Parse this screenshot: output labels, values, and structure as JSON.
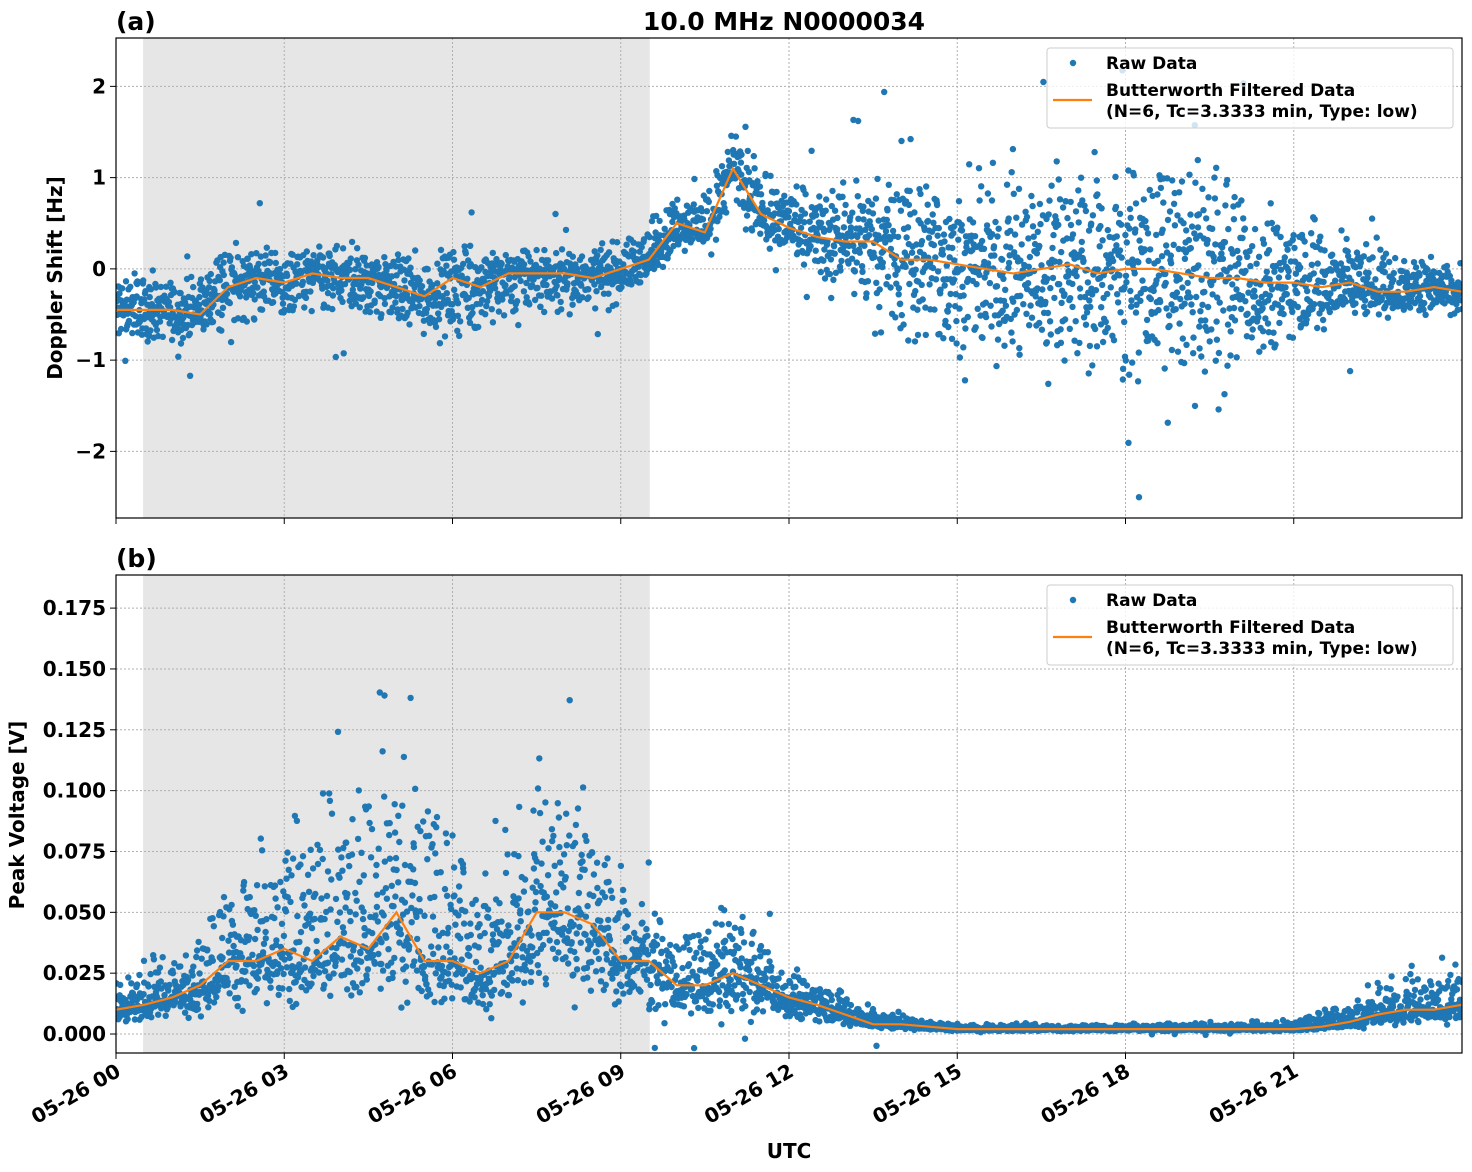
{
  "title": "10.0 MHz N0000034",
  "colors": {
    "raw": "#1f77b4",
    "filtered": "#ff7f0e",
    "shade": "#e6e6e6",
    "grid": "#b0b0b0"
  },
  "chart_data": [
    {
      "panel_label": "(a)",
      "type": "scatter+line",
      "ylabel": "Doppler Shift [Hz]",
      "xlabel": "",
      "xlim_hours_utc": [
        0,
        24
      ],
      "ylim": [
        -2.73,
        2.53
      ],
      "yticks": [
        -2,
        -1,
        0,
        1,
        2
      ],
      "ytick_labels": [
        "−2",
        "−1",
        "0",
        "1",
        "2"
      ],
      "xtick_hours": [
        0,
        3,
        6,
        9,
        12,
        15,
        18,
        21
      ],
      "shaded_interval_utc": [
        "05-26 00:29",
        "05-26 09:31"
      ],
      "grid": true,
      "legend_placement": "top-right",
      "legend": [
        "Raw Data",
        "Butterworth Filtered Data",
        "(N=6, Tc=3.3333 min, Type: low)"
      ],
      "filtered_series": {
        "name": "Butterworth Filtered Data",
        "x_utc_hours": [
          0,
          0.5,
          1,
          1.5,
          2,
          2.5,
          3,
          3.5,
          4,
          4.5,
          5,
          5.5,
          6,
          6.5,
          7,
          7.5,
          8,
          8.5,
          9,
          9.5,
          10,
          10.5,
          11,
          11.5,
          12,
          12.5,
          13,
          13.5,
          14,
          14.5,
          15,
          15.5,
          16,
          16.5,
          17,
          17.5,
          18,
          18.5,
          19,
          19.5,
          20,
          20.5,
          21,
          21.5,
          22,
          22.5,
          23,
          23.5,
          24
        ],
        "y": [
          -0.45,
          -0.45,
          -0.45,
          -0.5,
          -0.2,
          -0.1,
          -0.15,
          -0.05,
          -0.1,
          -0.1,
          -0.2,
          -0.3,
          -0.1,
          -0.2,
          -0.05,
          -0.05,
          -0.05,
          -0.1,
          0.0,
          0.1,
          0.5,
          0.4,
          1.1,
          0.6,
          0.45,
          0.35,
          0.3,
          0.3,
          0.1,
          0.1,
          0.05,
          0.0,
          -0.05,
          0.0,
          0.05,
          -0.05,
          0.0,
          0.0,
          -0.05,
          -0.1,
          -0.1,
          -0.15,
          -0.15,
          -0.2,
          -0.15,
          -0.25,
          -0.25,
          -0.2,
          -0.25
        ]
      },
      "raw_series": {
        "name": "Raw Data",
        "envelope_x_utc_hours": [
          0,
          1,
          2,
          3,
          4,
          5,
          6,
          7,
          8,
          9,
          10,
          11,
          12,
          13,
          14,
          15,
          16,
          17,
          18,
          19,
          20,
          21,
          22,
          23,
          24
        ],
        "min": [
          -0.9,
          -0.9,
          -0.7,
          -0.8,
          -0.8,
          -0.8,
          -1.0,
          -0.7,
          -0.6,
          -0.5,
          0.1,
          0.3,
          0.0,
          -0.5,
          -1.2,
          -1.3,
          -1.4,
          -1.5,
          -1.6,
          -1.6,
          -1.5,
          -1.0,
          -0.7,
          -0.6,
          -0.6
        ],
        "max": [
          0.1,
          0.0,
          0.4,
          0.3,
          0.4,
          0.3,
          0.3,
          0.3,
          0.3,
          0.4,
          0.9,
          1.5,
          1.0,
          1.1,
          1.3,
          1.4,
          1.5,
          1.6,
          1.7,
          1.6,
          1.4,
          1.0,
          0.6,
          0.3,
          0.2
        ]
      }
    },
    {
      "panel_label": "(b)",
      "type": "scatter+line",
      "ylabel": "Peak Voltage [V]",
      "xlabel": "UTC",
      "xlim_hours_utc": [
        0,
        24
      ],
      "ylim": [
        -0.0078,
        0.1886
      ],
      "yticks": [
        0,
        0.025,
        0.05,
        0.075,
        0.1,
        0.125,
        0.15,
        0.175
      ],
      "ytick_labels": [
        "0.000",
        "0.025",
        "0.050",
        "0.075",
        "0.100",
        "0.125",
        "0.150",
        "0.175"
      ],
      "xtick_hours": [
        0,
        3,
        6,
        9,
        12,
        15,
        18,
        21
      ],
      "xtick_labels": [
        "05-26 00",
        "05-26 03",
        "05-26 06",
        "05-26 09",
        "05-26 12",
        "05-26 15",
        "05-26 18",
        "05-26 21"
      ],
      "shaded_interval_utc": [
        "05-26 00:29",
        "05-26 09:31"
      ],
      "grid": true,
      "legend_placement": "top-right",
      "legend": [
        "Raw Data",
        "Butterworth Filtered Data",
        "(N=6, Tc=3.3333 min, Type: low)"
      ],
      "filtered_series": {
        "name": "Butterworth Filtered Data",
        "x_utc_hours": [
          0,
          0.5,
          1,
          1.5,
          2,
          2.5,
          3,
          3.5,
          4,
          4.5,
          5,
          5.5,
          6,
          6.5,
          7,
          7.5,
          8,
          8.5,
          9,
          9.5,
          10,
          10.5,
          11,
          11.5,
          12,
          12.5,
          13,
          13.5,
          14,
          14.5,
          15,
          15.5,
          16,
          16.5,
          17,
          17.5,
          18,
          18.5,
          19,
          19.5,
          20,
          20.5,
          21,
          21.5,
          22,
          22.5,
          23,
          23.5,
          24
        ],
        "y": [
          0.01,
          0.012,
          0.015,
          0.02,
          0.03,
          0.03,
          0.035,
          0.03,
          0.04,
          0.035,
          0.05,
          0.03,
          0.03,
          0.025,
          0.03,
          0.05,
          0.05,
          0.045,
          0.03,
          0.03,
          0.02,
          0.02,
          0.025,
          0.02,
          0.015,
          0.012,
          0.008,
          0.004,
          0.004,
          0.003,
          0.002,
          0.002,
          0.002,
          0.002,
          0.002,
          0.002,
          0.002,
          0.002,
          0.002,
          0.002,
          0.002,
          0.002,
          0.002,
          0.003,
          0.005,
          0.008,
          0.01,
          0.01,
          0.012
        ]
      },
      "raw_series": {
        "name": "Raw Data",
        "envelope_x_utc_hours": [
          0,
          1,
          2,
          3,
          4,
          5,
          6,
          7,
          8,
          9,
          10,
          11,
          12,
          13,
          14,
          15,
          16,
          17,
          18,
          19,
          20,
          21,
          22,
          23,
          24
        ],
        "min": [
          0.003,
          0.005,
          0.005,
          0.005,
          0.005,
          0.005,
          0.005,
          0.005,
          0.005,
          0.005,
          0.003,
          0.003,
          0.003,
          0.002,
          0.001,
          0.001,
          0.001,
          0.001,
          0.001,
          0.001,
          0.001,
          0.001,
          0.002,
          0.002,
          0.003
        ],
        "max": [
          0.03,
          0.04,
          0.08,
          0.1,
          0.12,
          0.14,
          0.11,
          0.1,
          0.14,
          0.08,
          0.05,
          0.06,
          0.035,
          0.02,
          0.008,
          0.005,
          0.005,
          0.005,
          0.005,
          0.005,
          0.005,
          0.006,
          0.02,
          0.03,
          0.035
        ]
      }
    }
  ]
}
